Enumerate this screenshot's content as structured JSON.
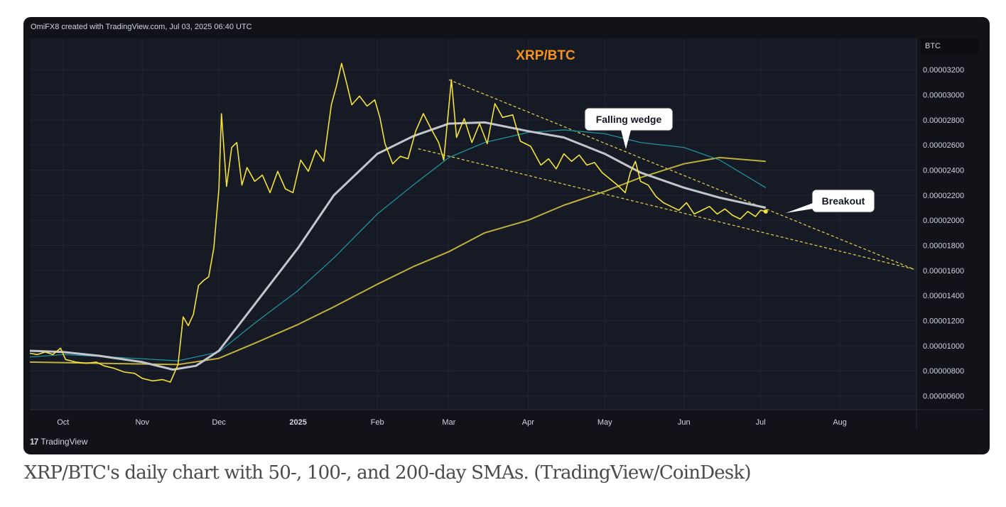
{
  "attribution": "OmiFX8 created with TradingView.com, Jul 03, 2025 06:40 UTC",
  "symbol_box": "BTC",
  "footer_logo": "TradingView",
  "caption": "XRP/BTC's daily chart with 50-, 100-, and 200-day SMAs. (TradingView/CoinDesk)",
  "colors": {
    "background": "#111319",
    "price": "#f5e13b",
    "sma50": "#c2c5cc",
    "sma100": "#1f9aa6",
    "sma200": "#c2b03c",
    "trendline": "#e8d24a",
    "title": "#f7931a"
  },
  "icons": {
    "logo": "tradingview-logo-icon"
  },
  "chart_data": {
    "type": "line",
    "title": "XRP/BTC",
    "x_axis_type": "date",
    "xlim": [
      "2024-09-18",
      "2025-08-31"
    ],
    "ylim": [
      4.9e-06,
      3.45e-05
    ],
    "y_scale": "linear",
    "grid": true,
    "x_ticks": [
      {
        "date": "2024-10-01",
        "label": "Oct"
      },
      {
        "date": "2024-11-01",
        "label": "Nov"
      },
      {
        "date": "2024-12-01",
        "label": "Dec"
      },
      {
        "date": "2025-01-01",
        "label": "2025"
      },
      {
        "date": "2025-02-01",
        "label": "Feb"
      },
      {
        "date": "2025-03-01",
        "label": "Mar"
      },
      {
        "date": "2025-04-01",
        "label": "Apr"
      },
      {
        "date": "2025-05-01",
        "label": "May"
      },
      {
        "date": "2025-06-01",
        "label": "Jun"
      },
      {
        "date": "2025-07-01",
        "label": "Jul"
      },
      {
        "date": "2025-08-01",
        "label": "Aug"
      }
    ],
    "y_ticks": [
      {
        "value": 3.2e-05,
        "label": "0.00003200"
      },
      {
        "value": 3e-05,
        "label": "0.00003000"
      },
      {
        "value": 2.8e-05,
        "label": "0.00002800"
      },
      {
        "value": 2.6e-05,
        "label": "0.00002600"
      },
      {
        "value": 2.4e-05,
        "label": "0.00002400"
      },
      {
        "value": 2.2e-05,
        "label": "0.00002200"
      },
      {
        "value": 2e-05,
        "label": "0.00002000"
      },
      {
        "value": 1.8e-05,
        "label": "0.00001800"
      },
      {
        "value": 1.6e-05,
        "label": "0.00001600"
      },
      {
        "value": 1.4e-05,
        "label": "0.00001400"
      },
      {
        "value": 1.2e-05,
        "label": "0.00001200"
      },
      {
        "value": 1e-05,
        "label": "0.00001000"
      },
      {
        "value": 8e-06,
        "label": "0.00000800"
      },
      {
        "value": 6e-06,
        "label": "0.00000600"
      }
    ],
    "series": [
      {
        "name": "",
        "key": "price",
        "points": [
          [
            "2024-09-18",
            9.4e-06
          ],
          [
            "2024-09-21",
            9.3e-06
          ],
          [
            "2024-09-24",
            9.5e-06
          ],
          [
            "2024-09-27",
            9.3e-06
          ],
          [
            "2024-09-30",
            9.8e-06
          ],
          [
            "2024-10-02",
            8.9e-06
          ],
          [
            "2024-10-06",
            8.7e-06
          ],
          [
            "2024-10-10",
            8.6e-06
          ],
          [
            "2024-10-14",
            8.7e-06
          ],
          [
            "2024-10-17",
            8.4e-06
          ],
          [
            "2024-10-21",
            8.2e-06
          ],
          [
            "2024-10-25",
            7.9e-06
          ],
          [
            "2024-10-29",
            7.8e-06
          ],
          [
            "2024-11-01",
            7.4e-06
          ],
          [
            "2024-11-05",
            7.2e-06
          ],
          [
            "2024-11-09",
            7.3e-06
          ],
          [
            "2024-11-12",
            7.1e-06
          ],
          [
            "2024-11-15",
            8.5e-06
          ],
          [
            "2024-11-17",
            1.23e-05
          ],
          [
            "2024-11-19",
            1.16e-05
          ],
          [
            "2024-11-21",
            1.25e-05
          ],
          [
            "2024-11-23",
            1.48e-05
          ],
          [
            "2024-11-25",
            1.52e-05
          ],
          [
            "2024-11-27",
            1.55e-05
          ],
          [
            "2024-11-29",
            1.78e-05
          ],
          [
            "2024-12-01",
            2.25e-05
          ],
          [
            "2024-12-02",
            2.85e-05
          ],
          [
            "2024-12-04",
            2.27e-05
          ],
          [
            "2024-12-06",
            2.58e-05
          ],
          [
            "2024-12-08",
            2.62e-05
          ],
          [
            "2024-12-10",
            2.28e-05
          ],
          [
            "2024-12-12",
            2.42e-05
          ],
          [
            "2024-12-15",
            2.31e-05
          ],
          [
            "2024-12-18",
            2.36e-05
          ],
          [
            "2024-12-21",
            2.22e-05
          ],
          [
            "2024-12-24",
            2.39e-05
          ],
          [
            "2024-12-27",
            2.25e-05
          ],
          [
            "2024-12-30",
            2.22e-05
          ],
          [
            "2025-01-02",
            2.48e-05
          ],
          [
            "2025-01-05",
            2.39e-05
          ],
          [
            "2025-01-08",
            2.56e-05
          ],
          [
            "2025-01-11",
            2.47e-05
          ],
          [
            "2025-01-14",
            2.92e-05
          ],
          [
            "2025-01-16",
            3.07e-05
          ],
          [
            "2025-01-18",
            3.25e-05
          ],
          [
            "2025-01-20",
            3.09e-05
          ],
          [
            "2025-01-22",
            2.92e-05
          ],
          [
            "2025-01-25",
            2.99e-05
          ],
          [
            "2025-01-28",
            2.91e-05
          ],
          [
            "2025-01-31",
            2.96e-05
          ],
          [
            "2025-02-02",
            2.82e-05
          ],
          [
            "2025-02-04",
            2.61e-05
          ],
          [
            "2025-02-07",
            2.45e-05
          ],
          [
            "2025-02-10",
            2.51e-05
          ],
          [
            "2025-02-13",
            2.49e-05
          ],
          [
            "2025-02-16",
            2.71e-05
          ],
          [
            "2025-02-19",
            2.85e-05
          ],
          [
            "2025-02-22",
            2.73e-05
          ],
          [
            "2025-02-25",
            2.62e-05
          ],
          [
            "2025-02-27",
            2.48e-05
          ],
          [
            "2025-03-02",
            3.12e-05
          ],
          [
            "2025-03-04",
            2.66e-05
          ],
          [
            "2025-03-07",
            2.81e-05
          ],
          [
            "2025-03-10",
            2.62e-05
          ],
          [
            "2025-03-13",
            2.77e-05
          ],
          [
            "2025-03-16",
            2.61e-05
          ],
          [
            "2025-03-19",
            2.93e-05
          ],
          [
            "2025-03-22",
            2.82e-05
          ],
          [
            "2025-03-26",
            2.84e-05
          ],
          [
            "2025-03-29",
            2.63e-05
          ],
          [
            "2025-04-02",
            2.59e-05
          ],
          [
            "2025-04-06",
            2.44e-05
          ],
          [
            "2025-04-09",
            2.49e-05
          ],
          [
            "2025-04-12",
            2.41e-05
          ],
          [
            "2025-04-15",
            2.53e-05
          ],
          [
            "2025-04-18",
            2.47e-05
          ],
          [
            "2025-04-21",
            2.52e-05
          ],
          [
            "2025-04-24",
            2.44e-05
          ],
          [
            "2025-04-27",
            2.46e-05
          ],
          [
            "2025-04-30",
            2.38e-05
          ],
          [
            "2025-05-03",
            2.33e-05
          ],
          [
            "2025-05-06",
            2.28e-05
          ],
          [
            "2025-05-09",
            2.22e-05
          ],
          [
            "2025-05-11",
            2.38e-05
          ],
          [
            "2025-05-13",
            2.47e-05
          ],
          [
            "2025-05-15",
            2.31e-05
          ],
          [
            "2025-05-18",
            2.28e-05
          ],
          [
            "2025-05-21",
            2.19e-05
          ],
          [
            "2025-05-24",
            2.14e-05
          ],
          [
            "2025-05-27",
            2.11e-05
          ],
          [
            "2025-05-30",
            2.08e-05
          ],
          [
            "2025-06-02",
            2.14e-05
          ],
          [
            "2025-06-05",
            2.05e-05
          ],
          [
            "2025-06-08",
            2.08e-05
          ],
          [
            "2025-06-11",
            2.11e-05
          ],
          [
            "2025-06-14",
            2.05e-05
          ],
          [
            "2025-06-17",
            2.09e-05
          ],
          [
            "2025-06-20",
            2.04e-05
          ],
          [
            "2025-06-23",
            2.01e-05
          ],
          [
            "2025-06-26",
            2.07e-05
          ],
          [
            "2025-06-29",
            2.03e-05
          ],
          [
            "2025-07-01",
            2.08e-05
          ],
          [
            "2025-07-03",
            2.07e-05
          ]
        ]
      },
      {
        "name": "",
        "key": "sma50",
        "points": [
          [
            "2024-09-18",
            9.6e-06
          ],
          [
            "2024-10-01",
            9.5e-06
          ],
          [
            "2024-10-15",
            9.2e-06
          ],
          [
            "2024-11-01",
            8.7e-06
          ],
          [
            "2024-11-13",
            8.1e-06
          ],
          [
            "2024-11-22",
            8.4e-06
          ],
          [
            "2024-12-01",
            9.6e-06
          ],
          [
            "2024-12-15",
            1.33e-05
          ],
          [
            "2025-01-01",
            1.78e-05
          ],
          [
            "2025-01-15",
            2.2e-05
          ],
          [
            "2025-02-01",
            2.53e-05
          ],
          [
            "2025-02-15",
            2.67e-05
          ],
          [
            "2025-03-01",
            2.77e-05
          ],
          [
            "2025-03-15",
            2.78e-05
          ],
          [
            "2025-04-01",
            2.71e-05
          ],
          [
            "2025-04-15",
            2.66e-05
          ],
          [
            "2025-05-01",
            2.53e-05
          ],
          [
            "2025-05-15",
            2.38e-05
          ],
          [
            "2025-06-01",
            2.26e-05
          ],
          [
            "2025-06-15",
            2.18e-05
          ],
          [
            "2025-07-03",
            2.1e-05
          ]
        ]
      },
      {
        "name": "",
        "key": "sma100",
        "points": [
          [
            "2024-09-18",
            9.1e-06
          ],
          [
            "2024-10-01",
            9.3e-06
          ],
          [
            "2024-10-20",
            9.1e-06
          ],
          [
            "2024-11-15",
            8.8e-06
          ],
          [
            "2024-12-01",
            9.5e-06
          ],
          [
            "2024-12-15",
            1.18e-05
          ],
          [
            "2025-01-01",
            1.44e-05
          ],
          [
            "2025-01-15",
            1.7e-05
          ],
          [
            "2025-02-01",
            2.05e-05
          ],
          [
            "2025-02-15",
            2.28e-05
          ],
          [
            "2025-03-01",
            2.5e-05
          ],
          [
            "2025-03-15",
            2.62e-05
          ],
          [
            "2025-04-01",
            2.7e-05
          ],
          [
            "2025-04-15",
            2.72e-05
          ],
          [
            "2025-05-01",
            2.69e-05
          ],
          [
            "2025-05-15",
            2.62e-05
          ],
          [
            "2025-06-01",
            2.58e-05
          ],
          [
            "2025-06-15",
            2.48e-05
          ],
          [
            "2025-07-03",
            2.26e-05
          ]
        ]
      },
      {
        "name": "",
        "key": "sma200",
        "points": [
          [
            "2024-09-18",
            8.7e-06
          ],
          [
            "2024-10-15",
            8.6e-06
          ],
          [
            "2024-11-15",
            8.5e-06
          ],
          [
            "2024-12-01",
            9e-06
          ],
          [
            "2024-12-15",
            1.02e-05
          ],
          [
            "2025-01-01",
            1.17e-05
          ],
          [
            "2025-01-15",
            1.31e-05
          ],
          [
            "2025-02-01",
            1.49e-05
          ],
          [
            "2025-02-15",
            1.63e-05
          ],
          [
            "2025-03-01",
            1.75e-05
          ],
          [
            "2025-03-15",
            1.9e-05
          ],
          [
            "2025-04-01",
            2e-05
          ],
          [
            "2025-04-15",
            2.12e-05
          ],
          [
            "2025-05-01",
            2.23e-05
          ],
          [
            "2025-05-15",
            2.34e-05
          ],
          [
            "2025-06-01",
            2.45e-05
          ],
          [
            "2025-06-15",
            2.5e-05
          ],
          [
            "2025-07-03",
            2.47e-05
          ]
        ]
      }
    ],
    "trendlines": [
      {
        "from": [
          "2025-03-01",
          3.12e-05
        ],
        "to": [
          "2025-08-30",
          1.61e-05
        ]
      },
      {
        "from": [
          "2025-02-17",
          2.57e-05
        ],
        "to": [
          "2025-08-30",
          1.61e-05
        ]
      }
    ],
    "annotations": [
      {
        "text": "Falling wedge",
        "date": "2025-05-08",
        "value": 2.6e-05
      },
      {
        "text": "Breakout",
        "date": "2025-07-03",
        "value": 2.08e-05
      }
    ]
  }
}
